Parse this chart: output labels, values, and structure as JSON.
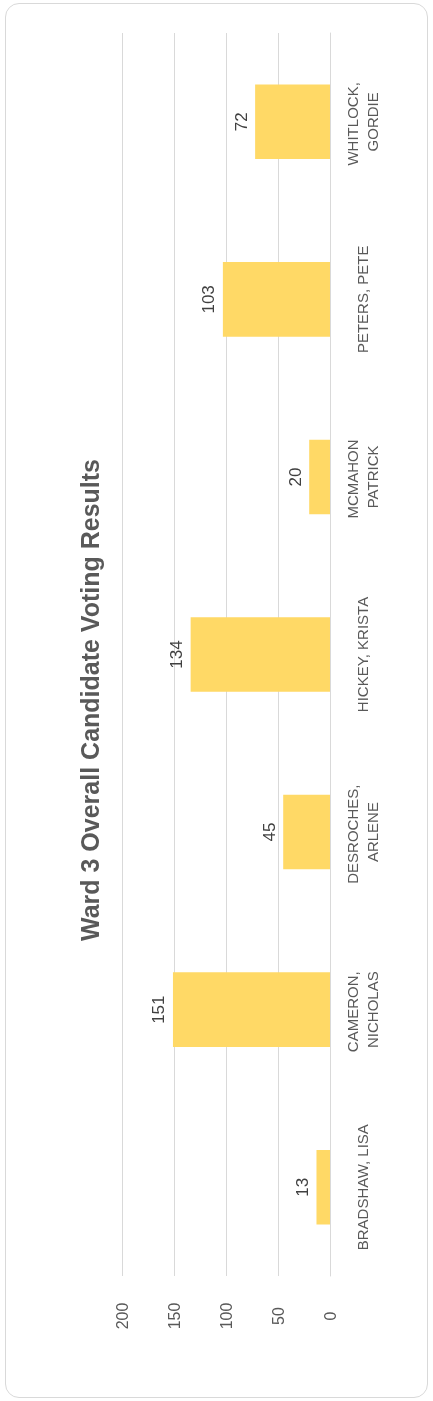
{
  "chart_data": {
    "type": "bar",
    "orientation": "horizontal",
    "title": "Ward 3 Overall Candidate Voting Results",
    "categories": [
      "WHITLOCK, GORDIE",
      "PETERS, PETE",
      "MCMAHON PATRICK",
      "HICKEY, KRISTA",
      "DESROCHES, ARLENE",
      "CAMERON, NICHOLAS",
      "BRADSHAW, LISA"
    ],
    "values": [
      72,
      103,
      20,
      134,
      45,
      151,
      13
    ],
    "color": "#ffd966",
    "xlim": [
      200,
      0
    ],
    "xticks": [
      200,
      150,
      100,
      50,
      0
    ],
    "grid": "x",
    "data_labels": true
  }
}
